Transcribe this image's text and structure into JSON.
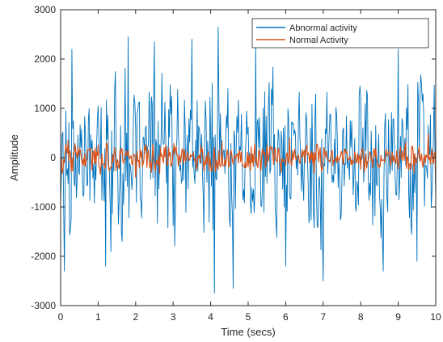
{
  "chart_data": {
    "type": "line",
    "title": "",
    "xlabel": "Time (secs)",
    "ylabel": "Amplitude",
    "xlim": [
      0,
      10
    ],
    "ylim": [
      -3000,
      3000
    ],
    "xticks": [
      0,
      1,
      2,
      3,
      4,
      5,
      6,
      7,
      8,
      9,
      10
    ],
    "yticks": [
      -3000,
      -2000,
      -1000,
      0,
      1000,
      2000,
      3000
    ],
    "grid": false,
    "legend_position": "top-right",
    "sample_step": 0.02,
    "series": [
      {
        "name": "Abnormal activity",
        "color": "#0072BD",
        "amplitude_range": [
          -2750,
          2700
        ],
        "peaks": [
          {
            "x": 0.1,
            "y": -2300
          },
          {
            "x": 0.3,
            "y": 2200
          },
          {
            "x": 1.2,
            "y": -2200
          },
          {
            "x": 1.8,
            "y": 2450
          },
          {
            "x": 2.5,
            "y": 2350
          },
          {
            "x": 3.5,
            "y": 2400
          },
          {
            "x": 4.1,
            "y": -2750
          },
          {
            "x": 4.2,
            "y": 2650
          },
          {
            "x": 4.6,
            "y": -2650
          },
          {
            "x": 5.2,
            "y": 2300
          },
          {
            "x": 6.0,
            "y": -2200
          },
          {
            "x": 7.0,
            "y": -2500
          },
          {
            "x": 8.6,
            "y": -2300
          },
          {
            "x": 9.0,
            "y": 2200
          },
          {
            "x": 9.5,
            "y": -2100
          }
        ]
      },
      {
        "name": "Normal Activity",
        "color": "#D95319",
        "amplitude_range": [
          -450,
          500
        ],
        "peaks": [
          {
            "x": 0.2,
            "y": 350
          },
          {
            "x": 2.0,
            "y": -400
          },
          {
            "x": 4.3,
            "y": 300
          },
          {
            "x": 6.1,
            "y": 400
          },
          {
            "x": 9.8,
            "y": 480
          },
          {
            "x": 10.0,
            "y": -420
          }
        ]
      }
    ]
  }
}
